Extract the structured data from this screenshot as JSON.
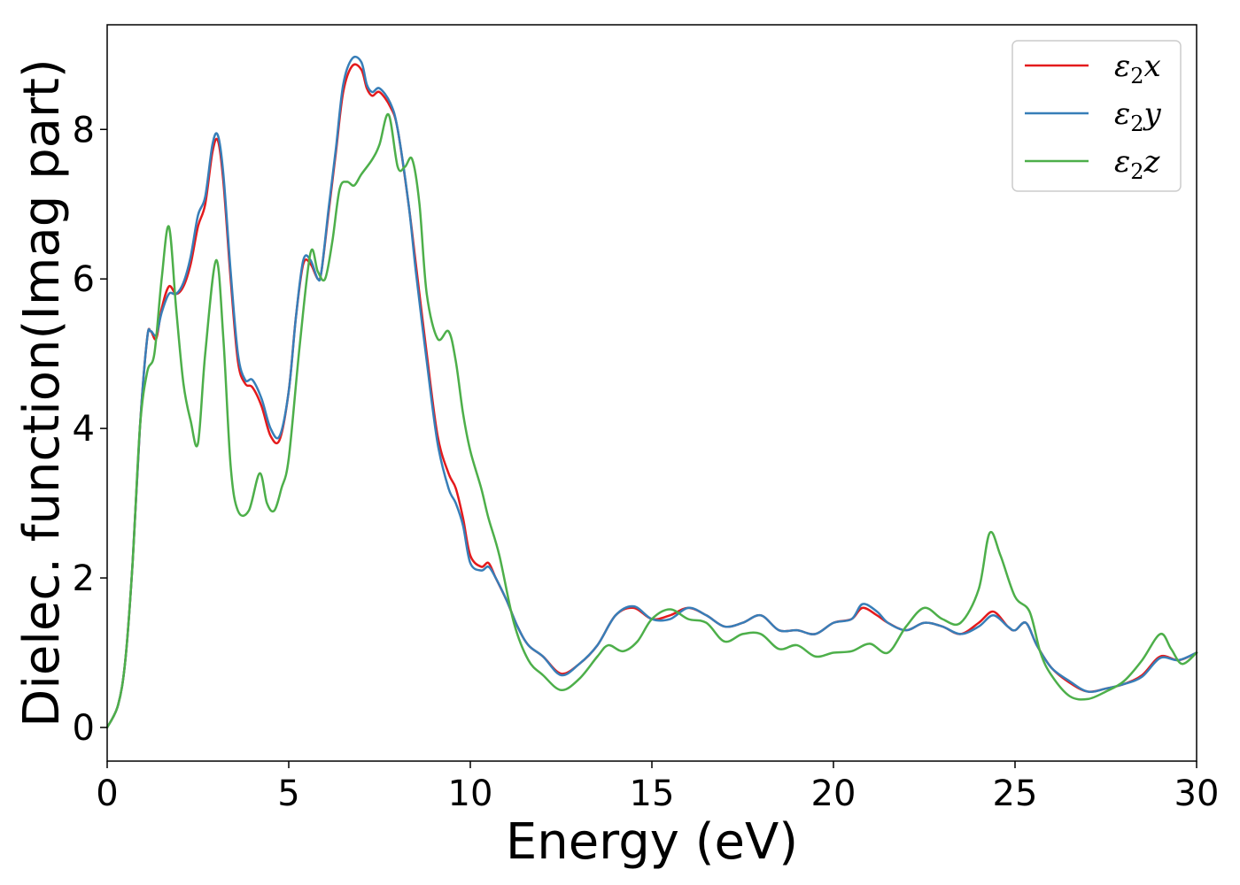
{
  "chart_data": {
    "type": "line",
    "xlabel": "Energy (eV)",
    "ylabel": "Dielec. function(Imag part)",
    "xlim": [
      0,
      30
    ],
    "ylim": [
      -0.45,
      9.4
    ],
    "xticks": [
      0,
      5,
      10,
      15,
      20,
      25,
      30
    ],
    "yticks": [
      0,
      2,
      4,
      6,
      8
    ],
    "grid": false,
    "legend_position": "top-right",
    "series": [
      {
        "name": "ε2x",
        "legend": {
          "base": "ε",
          "sub": "2",
          "suffix": "x"
        },
        "color": "#e41a1c",
        "x": [
          0,
          0.3,
          0.5,
          0.7,
          0.9,
          1.1,
          1.2,
          1.35,
          1.5,
          1.7,
          1.9,
          2.1,
          2.3,
          2.5,
          2.7,
          2.9,
          3.05,
          3.2,
          3.4,
          3.6,
          3.8,
          4.0,
          4.25,
          4.5,
          4.75,
          5.0,
          5.2,
          5.4,
          5.6,
          5.8,
          5.9,
          6.1,
          6.3,
          6.5,
          6.75,
          7.0,
          7.15,
          7.3,
          7.5,
          7.8,
          8.0,
          8.3,
          8.5,
          8.8,
          9.1,
          9.4,
          9.6,
          9.8,
          10.0,
          10.3,
          10.5,
          10.7,
          11.0,
          11.3,
          11.6,
          12.0,
          12.5,
          13.0,
          13.5,
          14.0,
          14.5,
          15.0,
          15.5,
          16.0,
          16.5,
          17.0,
          17.5,
          18.0,
          18.5,
          19.0,
          19.5,
          20.0,
          20.5,
          20.8,
          21.2,
          21.5,
          22.0,
          22.5,
          23.0,
          23.5,
          24.0,
          24.4,
          24.8,
          25.0,
          25.3,
          25.6,
          26.0,
          26.5,
          27.0,
          27.5,
          28.0,
          28.5,
          29.0,
          29.5,
          30.0
        ],
        "y": [
          0,
          0.3,
          0.9,
          2.2,
          4.0,
          5.2,
          5.3,
          5.2,
          5.6,
          5.9,
          5.8,
          5.9,
          6.2,
          6.7,
          7.0,
          7.7,
          7.85,
          7.3,
          6.0,
          4.9,
          4.6,
          4.55,
          4.3,
          3.9,
          3.85,
          4.5,
          5.5,
          6.2,
          6.2,
          6.0,
          6.1,
          6.9,
          7.7,
          8.5,
          8.85,
          8.8,
          8.55,
          8.45,
          8.5,
          8.3,
          8.0,
          7.0,
          6.2,
          5.0,
          3.9,
          3.4,
          3.2,
          2.8,
          2.3,
          2.15,
          2.2,
          2.0,
          1.7,
          1.35,
          1.1,
          0.95,
          0.72,
          0.85,
          1.1,
          1.5,
          1.6,
          1.45,
          1.5,
          1.6,
          1.5,
          1.35,
          1.4,
          1.5,
          1.3,
          1.3,
          1.25,
          1.4,
          1.45,
          1.6,
          1.5,
          1.4,
          1.3,
          1.4,
          1.35,
          1.25,
          1.4,
          1.55,
          1.35,
          1.3,
          1.4,
          1.1,
          0.8,
          0.6,
          0.48,
          0.52,
          0.58,
          0.7,
          0.95,
          0.9,
          1.0
        ]
      },
      {
        "name": "ε2y",
        "legend": {
          "base": "ε",
          "sub": "2",
          "suffix": "y"
        },
        "color": "#377eb8",
        "x": [
          0,
          0.3,
          0.5,
          0.7,
          0.9,
          1.1,
          1.2,
          1.35,
          1.5,
          1.7,
          1.9,
          2.1,
          2.3,
          2.5,
          2.7,
          2.9,
          3.05,
          3.2,
          3.4,
          3.6,
          3.8,
          4.0,
          4.25,
          4.5,
          4.75,
          5.0,
          5.2,
          5.4,
          5.6,
          5.8,
          5.9,
          6.1,
          6.3,
          6.5,
          6.75,
          7.0,
          7.15,
          7.3,
          7.5,
          7.8,
          8.0,
          8.3,
          8.5,
          8.8,
          9.1,
          9.4,
          9.6,
          9.8,
          10.0,
          10.3,
          10.5,
          10.7,
          11.0,
          11.3,
          11.6,
          12.0,
          12.5,
          13.0,
          13.5,
          14.0,
          14.5,
          15.0,
          15.5,
          16.0,
          16.5,
          17.0,
          17.5,
          18.0,
          18.5,
          19.0,
          19.5,
          20.0,
          20.5,
          20.8,
          21.2,
          21.5,
          22.0,
          22.5,
          23.0,
          23.5,
          24.0,
          24.4,
          24.8,
          25.0,
          25.3,
          25.6,
          26.0,
          26.5,
          27.0,
          27.5,
          28.0,
          28.5,
          29.0,
          29.5,
          30.0
        ],
        "y": [
          0,
          0.3,
          0.9,
          2.2,
          4.0,
          5.2,
          5.3,
          5.25,
          5.55,
          5.8,
          5.8,
          5.95,
          6.3,
          6.85,
          7.1,
          7.8,
          7.92,
          7.4,
          6.1,
          5.0,
          4.65,
          4.65,
          4.4,
          4.0,
          3.9,
          4.5,
          5.5,
          6.25,
          6.25,
          6.0,
          6.1,
          6.95,
          7.75,
          8.6,
          8.95,
          8.9,
          8.6,
          8.5,
          8.55,
          8.35,
          8.0,
          7.0,
          6.1,
          4.9,
          3.8,
          3.2,
          3.0,
          2.7,
          2.2,
          2.1,
          2.15,
          2.0,
          1.7,
          1.35,
          1.1,
          0.95,
          0.7,
          0.85,
          1.1,
          1.5,
          1.62,
          1.45,
          1.45,
          1.6,
          1.5,
          1.35,
          1.4,
          1.5,
          1.3,
          1.3,
          1.25,
          1.4,
          1.45,
          1.65,
          1.55,
          1.4,
          1.3,
          1.4,
          1.35,
          1.25,
          1.35,
          1.5,
          1.35,
          1.3,
          1.4,
          1.1,
          0.8,
          0.62,
          0.48,
          0.52,
          0.58,
          0.68,
          0.93,
          0.9,
          1.0
        ]
      },
      {
        "name": "ε2z",
        "legend": {
          "base": "ε",
          "sub": "2",
          "suffix": "z"
        },
        "color": "#4daf4a",
        "x": [
          0,
          0.3,
          0.5,
          0.7,
          0.9,
          1.1,
          1.3,
          1.5,
          1.7,
          1.9,
          2.1,
          2.3,
          2.5,
          2.7,
          3.0,
          3.2,
          3.4,
          3.6,
          3.9,
          4.2,
          4.4,
          4.6,
          4.8,
          5.0,
          5.3,
          5.6,
          5.8,
          6.0,
          6.2,
          6.4,
          6.6,
          6.8,
          7.0,
          7.3,
          7.5,
          7.75,
          8.0,
          8.2,
          8.4,
          8.6,
          8.8,
          9.1,
          9.4,
          9.6,
          9.8,
          10.0,
          10.3,
          10.5,
          10.8,
          11.2,
          11.6,
          12.0,
          12.5,
          13.0,
          13.5,
          13.8,
          14.2,
          14.6,
          15.0,
          15.5,
          16.0,
          16.5,
          17.0,
          17.5,
          18.0,
          18.5,
          19.0,
          19.5,
          20.0,
          20.5,
          21.0,
          21.5,
          22.0,
          22.5,
          23.0,
          23.5,
          24.0,
          24.3,
          24.6,
          25.0,
          25.4,
          25.7,
          26.0,
          26.5,
          27.0,
          27.5,
          28.0,
          28.5,
          29.0,
          29.3,
          29.6,
          30.0
        ],
        "y": [
          0,
          0.3,
          0.9,
          2.2,
          4.0,
          4.75,
          5.0,
          6.0,
          6.7,
          5.6,
          4.6,
          4.1,
          3.8,
          5.0,
          6.25,
          5.2,
          3.5,
          2.9,
          2.9,
          3.4,
          3.0,
          2.9,
          3.2,
          3.6,
          5.1,
          6.35,
          6.1,
          6.0,
          6.5,
          7.2,
          7.3,
          7.25,
          7.4,
          7.6,
          7.8,
          8.2,
          7.5,
          7.5,
          7.6,
          7.0,
          5.8,
          5.2,
          5.3,
          4.9,
          4.2,
          3.7,
          3.2,
          2.8,
          2.3,
          1.4,
          0.9,
          0.7,
          0.5,
          0.65,
          0.95,
          1.1,
          1.02,
          1.15,
          1.45,
          1.58,
          1.45,
          1.4,
          1.15,
          1.25,
          1.25,
          1.05,
          1.1,
          0.95,
          1.0,
          1.02,
          1.12,
          1.0,
          1.35,
          1.6,
          1.45,
          1.4,
          1.85,
          2.6,
          2.3,
          1.75,
          1.55,
          1.0,
          0.7,
          0.42,
          0.38,
          0.48,
          0.62,
          0.9,
          1.25,
          1.05,
          0.85,
          1.0
        ]
      }
    ]
  }
}
